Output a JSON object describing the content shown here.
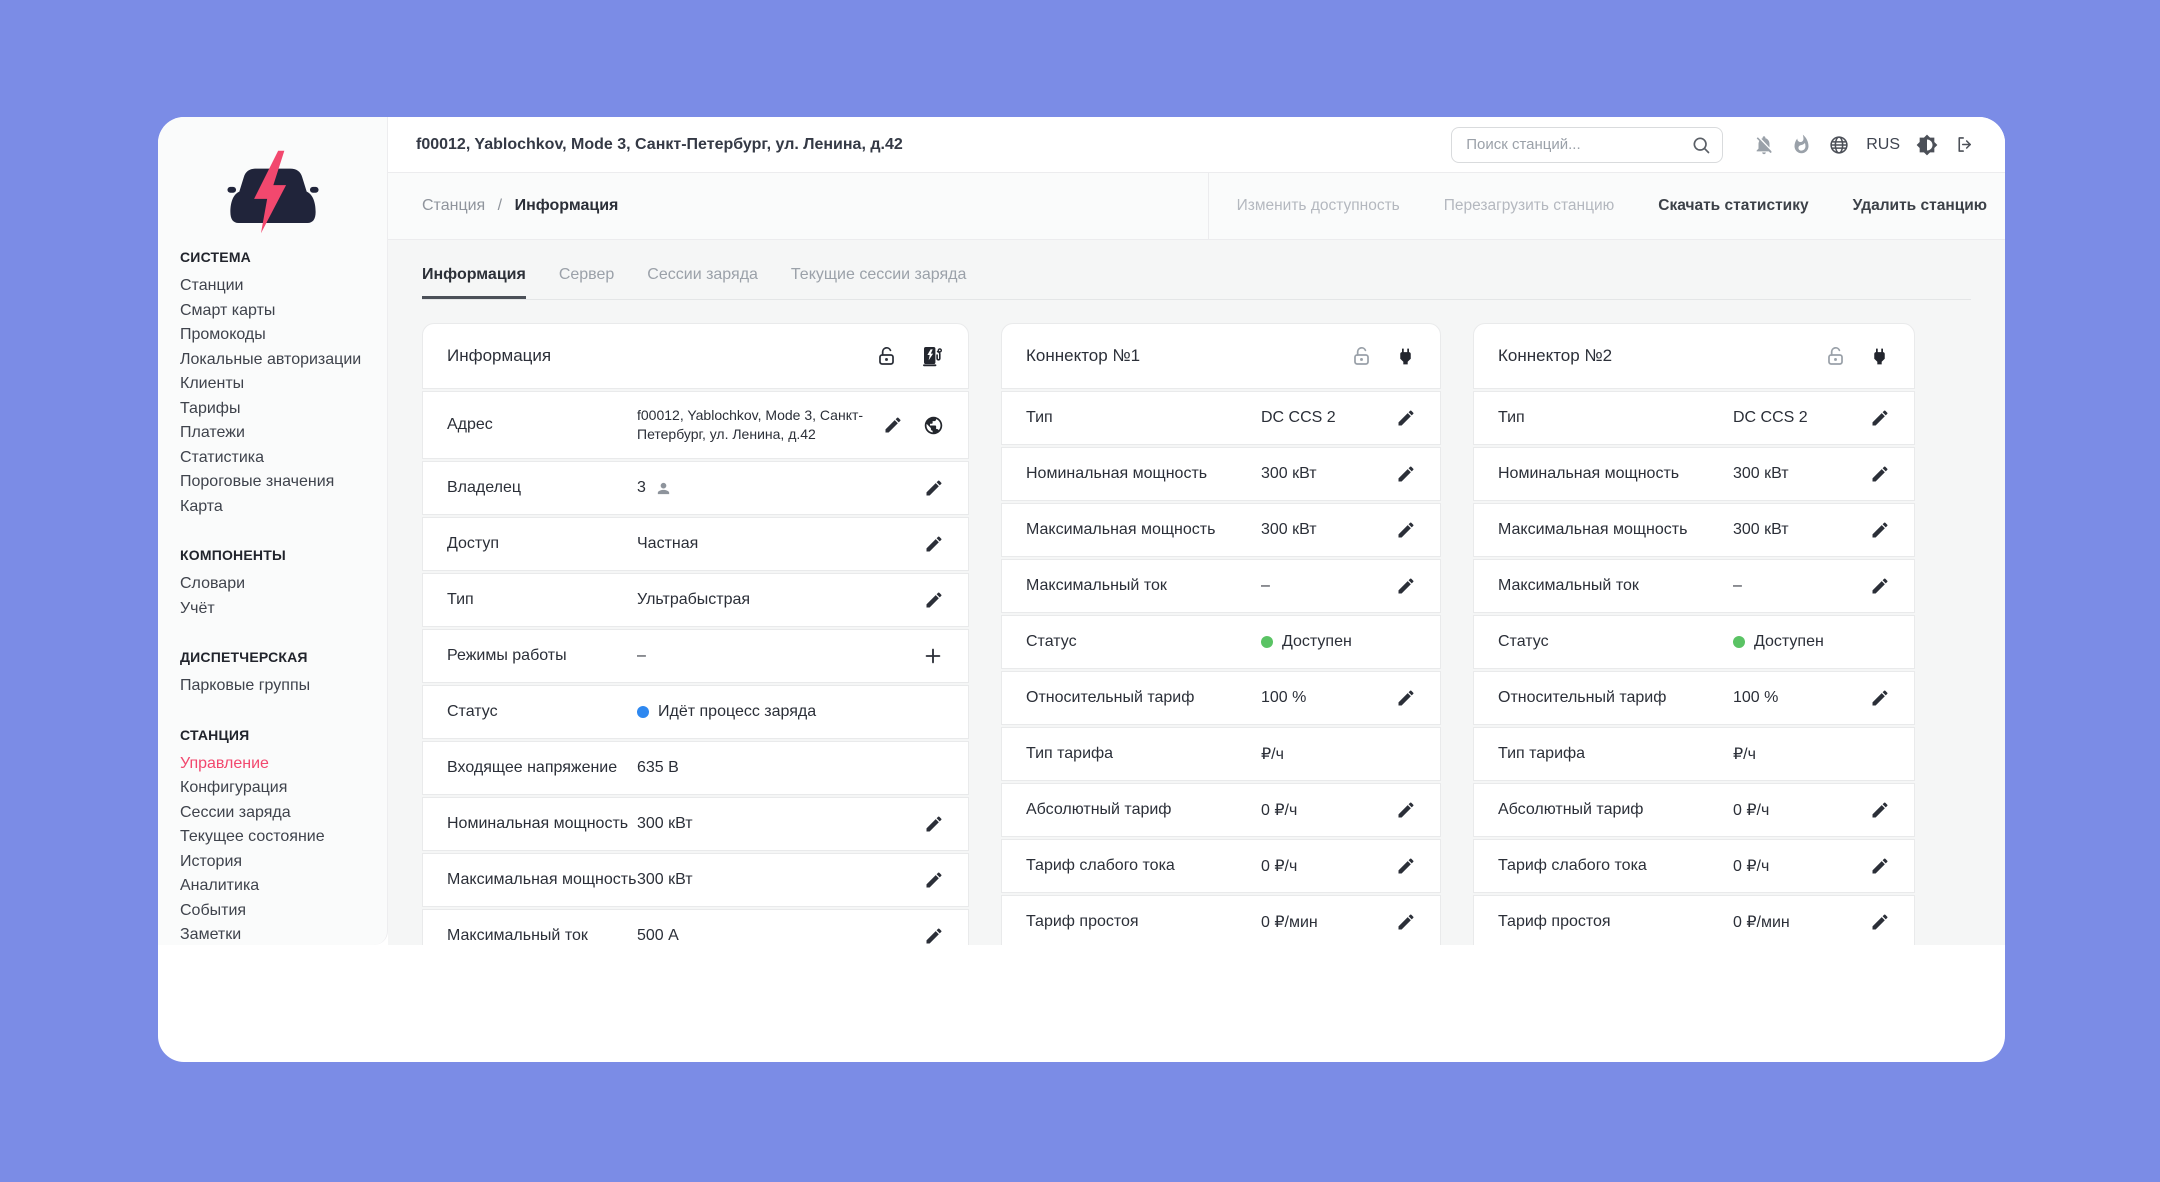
{
  "window": {
    "station_title": "f00012, Yablochkov, Mode 3, Санкт-Петербург, ул. Ленина, д.42"
  },
  "header": {
    "search_placeholder": "Поиск станций...",
    "language": "RUS",
    "icon_buttons": [
      "notifications-off",
      "flame",
      "globe",
      "brightness",
      "logout"
    ]
  },
  "breadcrumb": {
    "parent": "Станция",
    "separator": "/",
    "current": "Информация"
  },
  "actions": [
    {
      "label": "Изменить доступность",
      "enabled": false
    },
    {
      "label": "Перезагрузить станцию",
      "enabled": false
    },
    {
      "label": "Скачать статистику",
      "enabled": true
    },
    {
      "label": "Удалить станцию",
      "enabled": true
    }
  ],
  "tabs": [
    {
      "label": "Информация",
      "active": true
    },
    {
      "label": "Сервер",
      "active": false
    },
    {
      "label": "Сессии заряда",
      "active": false
    },
    {
      "label": "Текущие сессии заряда",
      "active": false
    }
  ],
  "sidebar": {
    "sections": [
      {
        "title": "СИСТЕМА",
        "items": [
          {
            "label": "Станции"
          },
          {
            "label": "Смарт карты"
          },
          {
            "label": "Промокоды"
          },
          {
            "label": "Локальные авторизации"
          },
          {
            "label": "Клиенты"
          },
          {
            "label": "Тарифы"
          },
          {
            "label": "Платежи"
          },
          {
            "label": "Статистика"
          },
          {
            "label": "Пороговые значения"
          },
          {
            "label": "Карта"
          }
        ]
      },
      {
        "title": "КОМПОНЕНТЫ",
        "items": [
          {
            "label": "Словари"
          },
          {
            "label": "Учёт"
          }
        ]
      },
      {
        "title": "ДИСПЕТЧЕРСКАЯ",
        "items": [
          {
            "label": "Парковые группы"
          }
        ]
      },
      {
        "title": "СТАНЦИЯ",
        "items": [
          {
            "label": "Управление",
            "active": true
          },
          {
            "label": "Конфигурация"
          },
          {
            "label": "Сессии заряда"
          },
          {
            "label": "Текущее состояние"
          },
          {
            "label": "История"
          },
          {
            "label": "Аналитика"
          },
          {
            "label": "События"
          },
          {
            "label": "Заметки"
          }
        ]
      }
    ]
  },
  "colors": {
    "accent": "#f2486e",
    "status_charging": "#2e88f0",
    "status_available": "#5ac364",
    "logo_navy": "#20243a",
    "page_background": "#7b8ce6"
  },
  "cards": [
    {
      "title": "Информация",
      "header_icons": [
        "lock-open",
        "ev-station"
      ],
      "rows": [
        {
          "label": "Адрес",
          "value": "f00012, Yablochkov, Mode 3, Санкт-Петербург, ул. Ленина, д.42",
          "small": true,
          "tall": true,
          "icons": [
            "pencil",
            "globe"
          ]
        },
        {
          "label": "Владелец",
          "value": "3",
          "value_icon": "person",
          "icons": [
            "pencil"
          ]
        },
        {
          "label": "Доступ",
          "value": "Частная",
          "icons": [
            "pencil"
          ]
        },
        {
          "label": "Тип",
          "value": "Ультрабыстрая",
          "icons": [
            "pencil"
          ]
        },
        {
          "label": "Режимы работы",
          "value": "–",
          "icons": [
            "plus"
          ]
        },
        {
          "label": "Статус",
          "value": "Идёт процесс заряда",
          "dot": "#2e88f0",
          "icons": []
        },
        {
          "label": "Входящее напряжение",
          "value": "635 В",
          "icons": []
        },
        {
          "label": "Номинальная мощность",
          "value": "300 кВт",
          "icons": [
            "pencil"
          ]
        },
        {
          "label": "Максимальная мощность",
          "value": "300 кВт",
          "icons": [
            "pencil"
          ]
        },
        {
          "label": "Максимальный ток",
          "value": "500 А",
          "icons": [
            "pencil"
          ]
        }
      ]
    },
    {
      "title": "Коннектор №1",
      "header_icons": [
        "lock-open-grey",
        "plug"
      ],
      "rows": [
        {
          "label": "Тип",
          "value": "DC CCS 2",
          "icons": [
            "pencil"
          ]
        },
        {
          "label": "Номинальная мощность",
          "value": "300 кВт",
          "icons": [
            "pencil"
          ]
        },
        {
          "label": "Максимальная мощность",
          "value": "300 кВт",
          "icons": [
            "pencil"
          ]
        },
        {
          "label": "Максимальный ток",
          "value": "–",
          "icons": [
            "pencil"
          ]
        },
        {
          "label": "Статус",
          "value": "Доступен",
          "dot": "#5ac364",
          "icons": []
        },
        {
          "label": "Относительный тариф",
          "value": "100 %",
          "icons": [
            "pencil"
          ]
        },
        {
          "label": "Тип тарифа",
          "value": "₽/ч",
          "icons": []
        },
        {
          "label": "Абсолютный тариф",
          "value": "0 ₽/ч",
          "icons": [
            "pencil"
          ]
        },
        {
          "label": "Тариф слабого тока",
          "value": "0 ₽/ч",
          "icons": [
            "pencil"
          ]
        },
        {
          "label": "Тариф простоя",
          "value": "0 ₽/мин",
          "icons": [
            "pencil"
          ]
        }
      ]
    },
    {
      "title": "Коннектор №2",
      "header_icons": [
        "lock-open-grey",
        "plug"
      ],
      "rows": [
        {
          "label": "Тип",
          "value": "DC CCS 2",
          "icons": [
            "pencil"
          ]
        },
        {
          "label": "Номинальная мощность",
          "value": "300 кВт",
          "icons": [
            "pencil"
          ]
        },
        {
          "label": "Максимальная мощность",
          "value": "300 кВт",
          "icons": [
            "pencil"
          ]
        },
        {
          "label": "Максимальный ток",
          "value": "–",
          "icons": [
            "pencil"
          ]
        },
        {
          "label": "Статус",
          "value": "Доступен",
          "dot": "#5ac364",
          "icons": []
        },
        {
          "label": "Относительный тариф",
          "value": "100 %",
          "icons": [
            "pencil"
          ]
        },
        {
          "label": "Тип тарифа",
          "value": "₽/ч",
          "icons": []
        },
        {
          "label": "Абсолютный тариф",
          "value": "0 ₽/ч",
          "icons": [
            "pencil"
          ]
        },
        {
          "label": "Тариф слабого тока",
          "value": "0 ₽/ч",
          "icons": [
            "pencil"
          ]
        },
        {
          "label": "Тариф простоя",
          "value": "0 ₽/мин",
          "icons": [
            "pencil"
          ]
        }
      ]
    }
  ]
}
